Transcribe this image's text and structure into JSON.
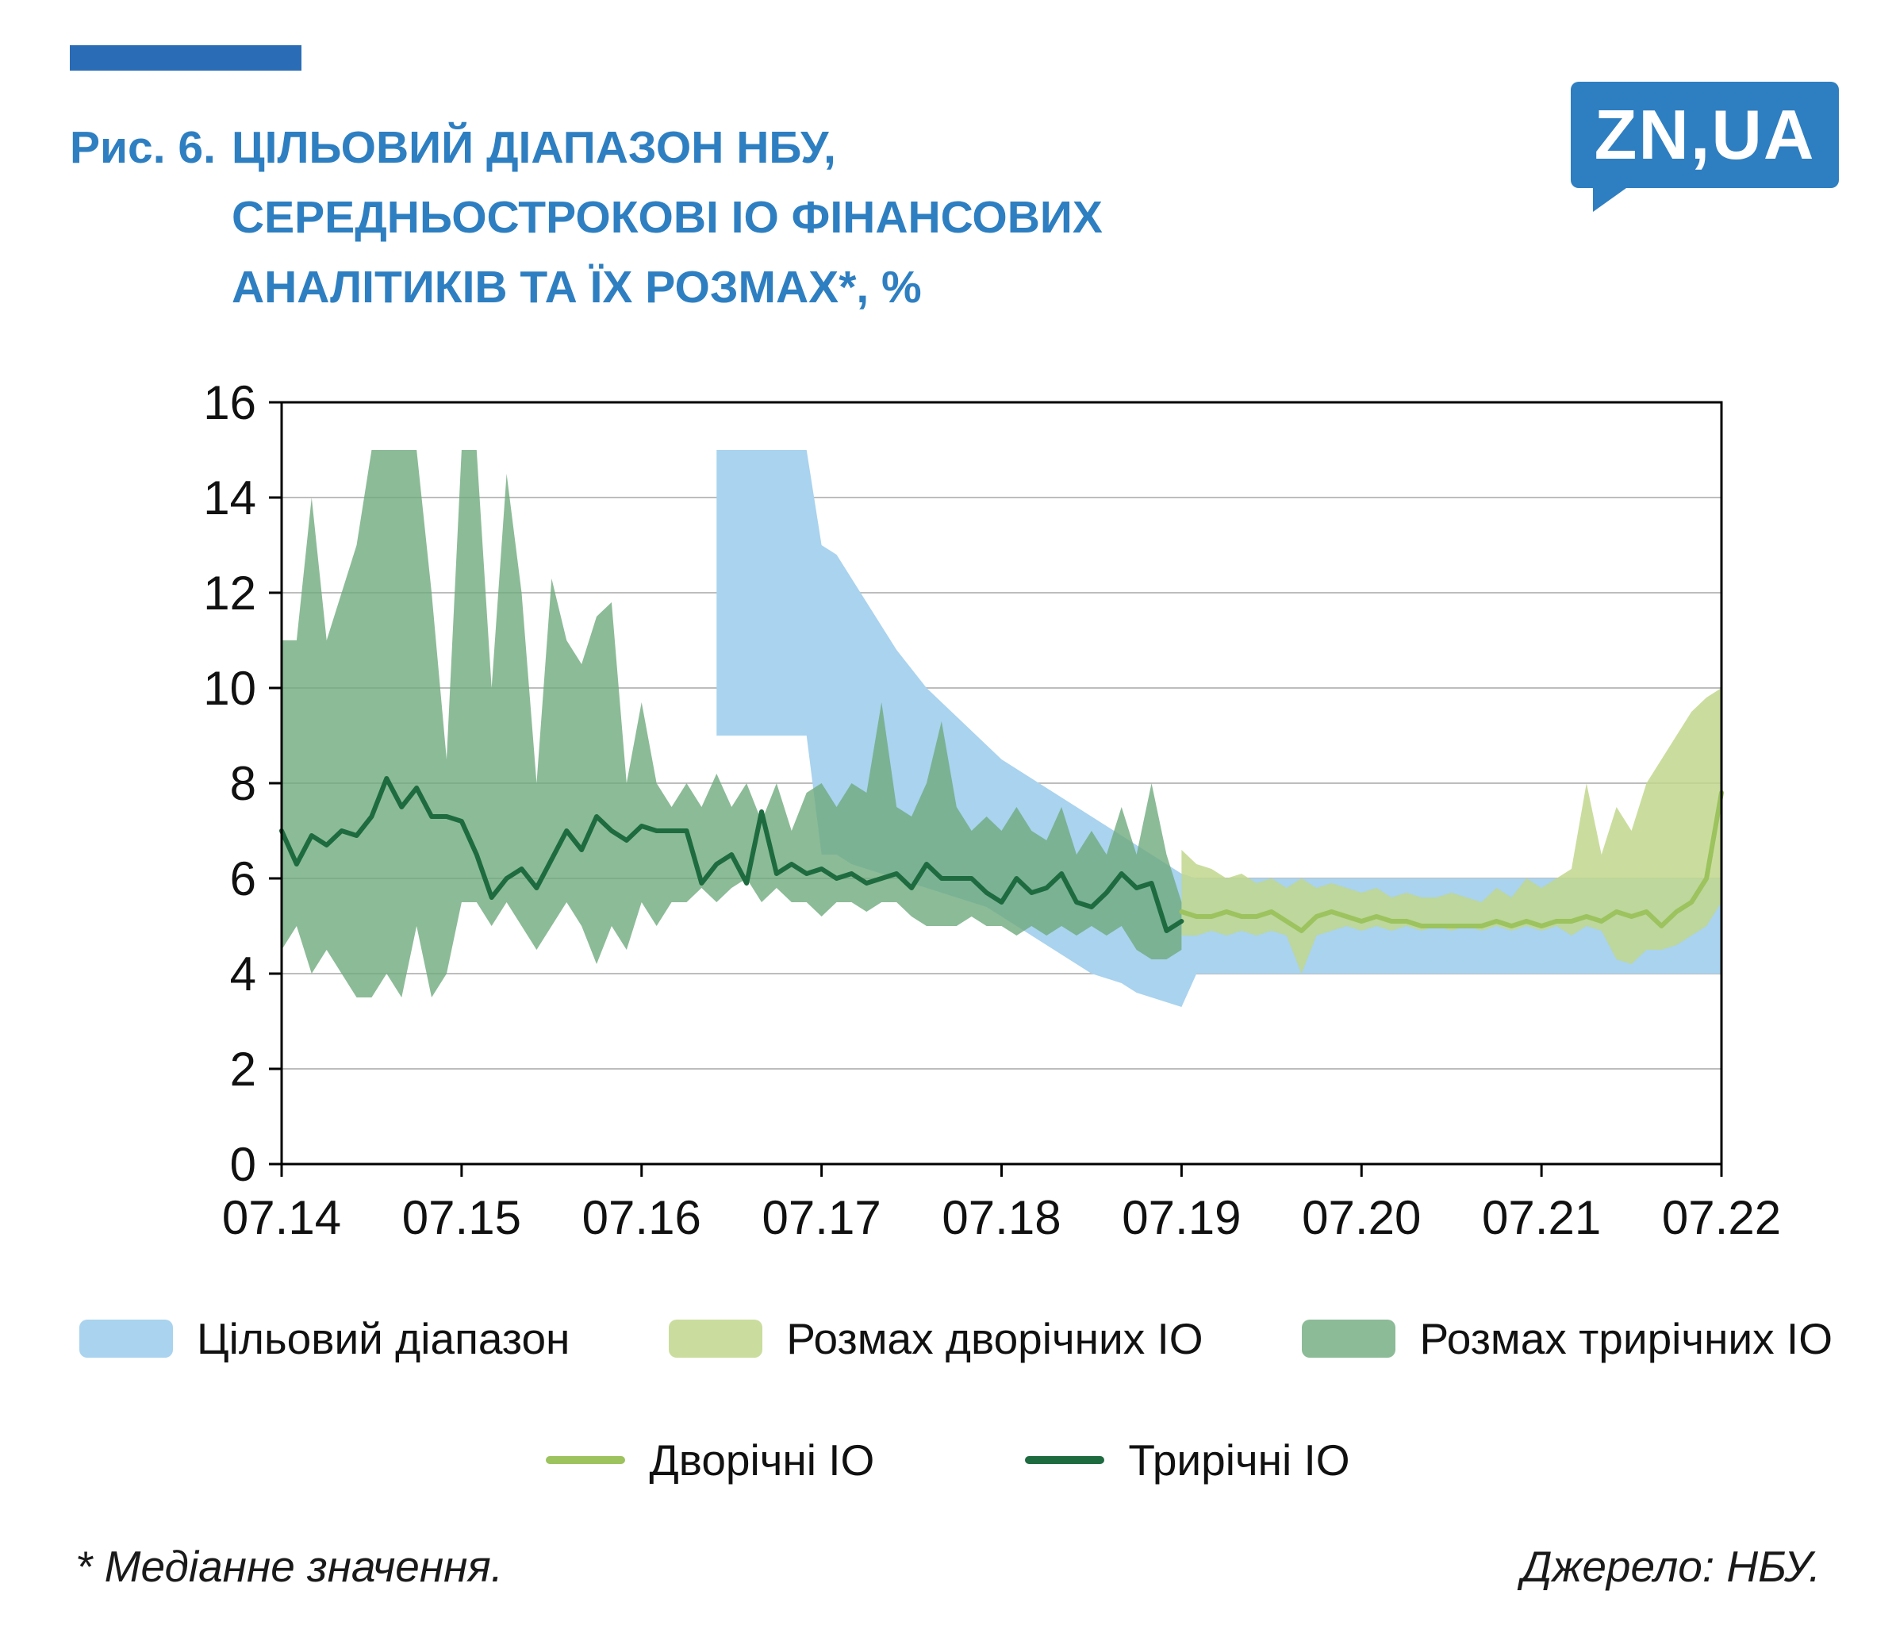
{
  "figure": {
    "label": "Рис. 6.",
    "title_lines": [
      "ЦІЛЬОВИЙ ДІАПАЗОН НБУ,",
      "СЕРЕДНЬОСТРОКОВІ ІО ФІНАНСОВИХ",
      "АНАЛІТИКІВ ТА ЇХ РОЗМАХ*, %"
    ]
  },
  "logo": {
    "text": "ZN,UA",
    "color": "#2e7fc1"
  },
  "legend": {
    "bands": [
      {
        "label": "Цільовий діапазон",
        "color": "#a9d3ee"
      },
      {
        "label": "Розмах дворічних ІО",
        "color": "#cadd9e"
      },
      {
        "label": "Розмах трирічних ІО",
        "color": "#8cbb97"
      }
    ],
    "lines": [
      {
        "label": "Дворічні ІО",
        "color": "#9cc35e"
      },
      {
        "label": "Трирічні ІО",
        "color": "#1e6b40"
      }
    ]
  },
  "footnotes": {
    "left": "* Медіанне значення.",
    "right": "Джерело: НБУ."
  },
  "colors": {
    "title_blue": "#2e7fc1",
    "accent_bar": "#2a6db6",
    "grid": "#bdbdbd",
    "axis": "#000000"
  },
  "chart_data": {
    "type": "area",
    "title": "Цільовий діапазон НБУ, середньострокові ІО фінансових аналітиків та їх розмах, %",
    "xlabel": "",
    "ylabel": "%",
    "grid": "horizontal",
    "legend_position": "bottom",
    "x_domain": [
      2014.5,
      2022.5
    ],
    "x_ticks": [
      "07.14",
      "07.15",
      "07.16",
      "07.17",
      "07.18",
      "07.19",
      "07.20",
      "07.21",
      "07.22"
    ],
    "ylim": [
      0,
      16
    ],
    "y_ticks": [
      0,
      2,
      4,
      6,
      8,
      10,
      12,
      14,
      16
    ],
    "bands": [
      {
        "key": "target-range",
        "name": "Цільовий діапазон",
        "color": "#a9d3ee",
        "opacity": 1,
        "start": "2016-12",
        "step_months": 1,
        "lower": [
          9,
          9,
          9,
          9,
          9,
          9,
          9,
          6.5,
          6.5,
          6.3,
          6.2,
          6.1,
          6,
          5.9,
          5.8,
          5.7,
          5.6,
          5.5,
          5.4,
          5.2,
          5,
          4.8,
          4.6,
          4.4,
          4.2,
          4,
          3.9,
          3.8,
          3.6,
          3.5,
          3.4,
          3.3,
          4,
          4,
          4,
          4,
          4,
          4,
          4,
          4,
          4,
          4,
          4,
          4,
          4,
          4,
          4,
          4,
          4,
          4,
          4,
          4,
          4,
          4,
          4,
          4,
          4,
          4,
          4,
          4,
          4,
          4,
          4,
          4,
          4,
          4,
          4,
          4
        ],
        "upper": [
          15,
          15,
          15,
          15,
          15,
          15,
          15,
          13,
          12.8,
          12.3,
          11.8,
          11.3,
          10.8,
          10.4,
          10,
          9.7,
          9.4,
          9.1,
          8.8,
          8.5,
          8.3,
          8.1,
          7.9,
          7.7,
          7.5,
          7.3,
          7.1,
          6.9,
          6.7,
          6.5,
          6.3,
          6.1,
          6,
          6,
          6,
          6,
          6,
          6,
          6,
          6,
          6,
          6,
          6,
          6,
          6,
          6,
          6,
          6,
          6,
          6,
          6,
          6,
          6,
          6,
          6,
          6,
          6,
          6,
          6,
          6,
          6,
          6,
          6,
          6,
          6,
          6,
          6,
          6
        ]
      },
      {
        "key": "two-year-range",
        "name": "Розмах дворічних ІО",
        "color": "#c1d78d",
        "opacity": 0.85,
        "start": "2019-07",
        "step_months": 1,
        "lower": [
          4.8,
          4.8,
          4.9,
          4.8,
          4.9,
          4.8,
          4.9,
          4.8,
          4.0,
          4.8,
          4.9,
          5.0,
          4.9,
          5.0,
          4.9,
          5.0,
          4.9,
          5.0,
          4.9,
          5.0,
          4.9,
          5.0,
          4.9,
          5.0,
          4.9,
          5.0,
          4.8,
          5.0,
          4.9,
          4.3,
          4.2,
          4.5,
          4.5,
          4.6,
          4.8,
          5.0,
          5.5
        ],
        "upper": [
          6.6,
          6.3,
          6.2,
          6.0,
          6.1,
          5.9,
          6.0,
          5.8,
          6.0,
          5.8,
          5.9,
          5.8,
          5.7,
          5.8,
          5.6,
          5.7,
          5.6,
          5.6,
          5.7,
          5.6,
          5.5,
          5.8,
          5.6,
          6.0,
          5.8,
          6.0,
          6.2,
          8.0,
          6.5,
          7.5,
          7.0,
          8.0,
          8.5,
          9.0,
          9.5,
          9.8,
          10.0
        ]
      },
      {
        "key": "three-year-range",
        "name": "Розмах трирічних ІО",
        "color": "#6faa7d",
        "opacity": 0.8,
        "start": "2014-07",
        "step_months": 1,
        "lower": [
          4.5,
          5,
          4,
          4.5,
          4,
          3.5,
          3.5,
          4,
          3.5,
          5,
          3.5,
          4,
          5.5,
          5.5,
          5,
          5.5,
          5,
          4.5,
          5,
          5.5,
          5,
          4.2,
          5,
          4.5,
          5.5,
          5,
          5.5,
          5.5,
          5.8,
          5.5,
          5.8,
          6,
          5.5,
          5.8,
          5.5,
          5.5,
          5.2,
          5.5,
          5.5,
          5.3,
          5.5,
          5.5,
          5.2,
          5,
          5,
          5,
          5.2,
          5,
          5,
          4.8,
          5,
          4.8,
          5,
          4.8,
          5,
          4.8,
          5,
          4.5,
          4.3,
          4.3,
          4.5
        ],
        "upper": [
          11,
          11,
          14,
          11,
          12,
          13,
          15,
          15,
          15,
          15,
          12,
          8.5,
          15,
          15,
          10,
          14.5,
          12,
          8,
          12.3,
          11,
          10.5,
          11.5,
          11.8,
          8,
          9.7,
          8,
          7.5,
          8,
          7.5,
          8.2,
          7.5,
          8,
          7.2,
          8,
          7,
          7.8,
          8,
          7.5,
          8,
          7.8,
          9.7,
          7.5,
          7.3,
          8,
          9.3,
          7.5,
          7,
          7.3,
          7,
          7.5,
          7,
          6.8,
          7.5,
          6.5,
          7,
          6.5,
          7.5,
          6.5,
          8,
          6.5,
          5.5
        ]
      }
    ],
    "lines": [
      {
        "key": "two-year-line",
        "name": "Дворічні ІО",
        "color": "#9cc35e",
        "start": "2019-07",
        "step_months": 1,
        "values": [
          5.3,
          5.2,
          5.2,
          5.3,
          5.2,
          5.2,
          5.3,
          5.1,
          4.9,
          5.2,
          5.3,
          5.2,
          5.1,
          5.2,
          5.1,
          5.1,
          5.0,
          5.0,
          5.0,
          5.0,
          5.0,
          5.1,
          5.0,
          5.1,
          5.0,
          5.1,
          5.1,
          5.2,
          5.1,
          5.3,
          5.2,
          5.3,
          5.0,
          5.3,
          5.5,
          6.0,
          7.8
        ]
      },
      {
        "key": "three-year-line",
        "name": "Трирічні ІО",
        "color": "#1e6b40",
        "start": "2014-07",
        "step_months": 1,
        "values": [
          7.0,
          6.3,
          6.9,
          6.7,
          7.0,
          6.9,
          7.3,
          8.1,
          7.5,
          7.9,
          7.3,
          7.3,
          7.2,
          6.5,
          5.6,
          6.0,
          6.2,
          5.8,
          6.4,
          7.0,
          6.6,
          7.3,
          7.0,
          6.8,
          7.1,
          7.0,
          7.0,
          7.0,
          5.9,
          6.3,
          6.5,
          5.9,
          7.4,
          6.1,
          6.3,
          6.1,
          6.2,
          6.0,
          6.1,
          5.9,
          6.0,
          6.1,
          5.8,
          6.3,
          6.0,
          6.0,
          6.0,
          5.7,
          5.5,
          6.0,
          5.7,
          5.8,
          6.1,
          5.5,
          5.4,
          5.7,
          6.1,
          5.8,
          5.9,
          4.9,
          5.1
        ]
      }
    ]
  }
}
